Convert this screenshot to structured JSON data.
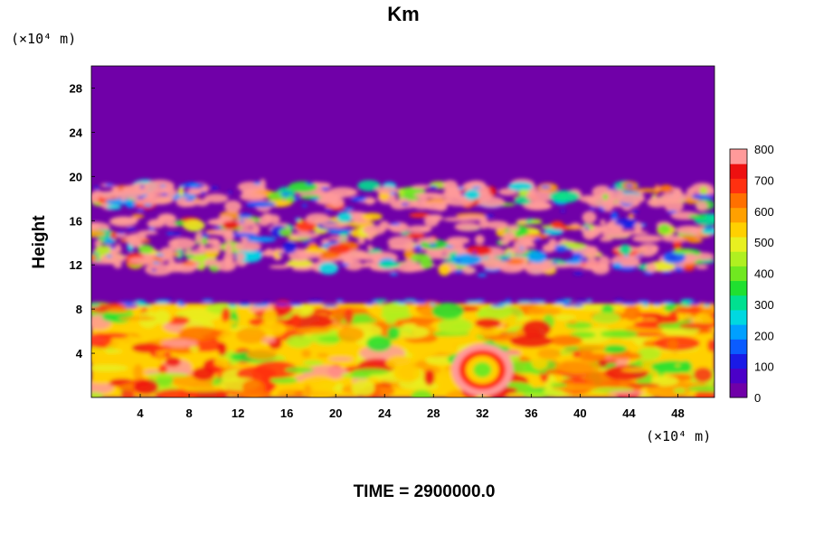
{
  "chart_data": {
    "type": "heatmap",
    "title": "Km",
    "ylabel": "Height",
    "xlabel": "",
    "x_unit_label": "(×10⁴ m)",
    "y_unit_label": "(×10⁴ m)",
    "footer": "TIME = 2900000.0",
    "xlim": [
      0,
      51
    ],
    "ylim": [
      0,
      30
    ],
    "x_ticks": [
      4,
      8,
      12,
      16,
      20,
      24,
      28,
      32,
      36,
      40,
      44,
      48
    ],
    "y_ticks": [
      4,
      8,
      12,
      16,
      20,
      24,
      28
    ],
    "x_tick_labels": [
      "4",
      "8",
      "12",
      "16",
      "20",
      "24",
      "28",
      "32",
      "36",
      "40",
      "44",
      "48"
    ],
    "y_tick_labels": [
      "4",
      "8",
      "12",
      "16",
      "20",
      "24",
      "28"
    ],
    "colorbar": {
      "min": 0,
      "max": 800,
      "tick_values": [
        0,
        100,
        200,
        300,
        400,
        500,
        600,
        700,
        800
      ],
      "tick_labels": [
        "0",
        "100",
        "200",
        "300",
        "400",
        "500",
        "600",
        "700",
        "800"
      ],
      "colors": [
        "#7000a8",
        "#4b00c8",
        "#1a1ae6",
        "#0a5cff",
        "#00a0ff",
        "#00d8e0",
        "#00e090",
        "#20e030",
        "#70e820",
        "#b0f020",
        "#e8f020",
        "#ffd000",
        "#ffa000",
        "#ff7000",
        "#ff3010",
        "#ee1010",
        "#ff9a9a"
      ]
    },
    "fields": [
      {
        "region": "lower layer",
        "y_range": [
          0,
          8.5
        ],
        "range_value": [
          300,
          800
        ],
        "description": "turbulent field, eddy near x=32, y=2.5"
      },
      {
        "region": "middle layer",
        "y_range": [
          8.5,
          11
        ],
        "value": 0
      },
      {
        "region": "upper turbulent band",
        "y_range": [
          11,
          19.5
        ],
        "range_value": [
          0,
          800
        ]
      },
      {
        "region": "top layer",
        "y_range": [
          19.5,
          30
        ],
        "value": 0
      }
    ]
  }
}
